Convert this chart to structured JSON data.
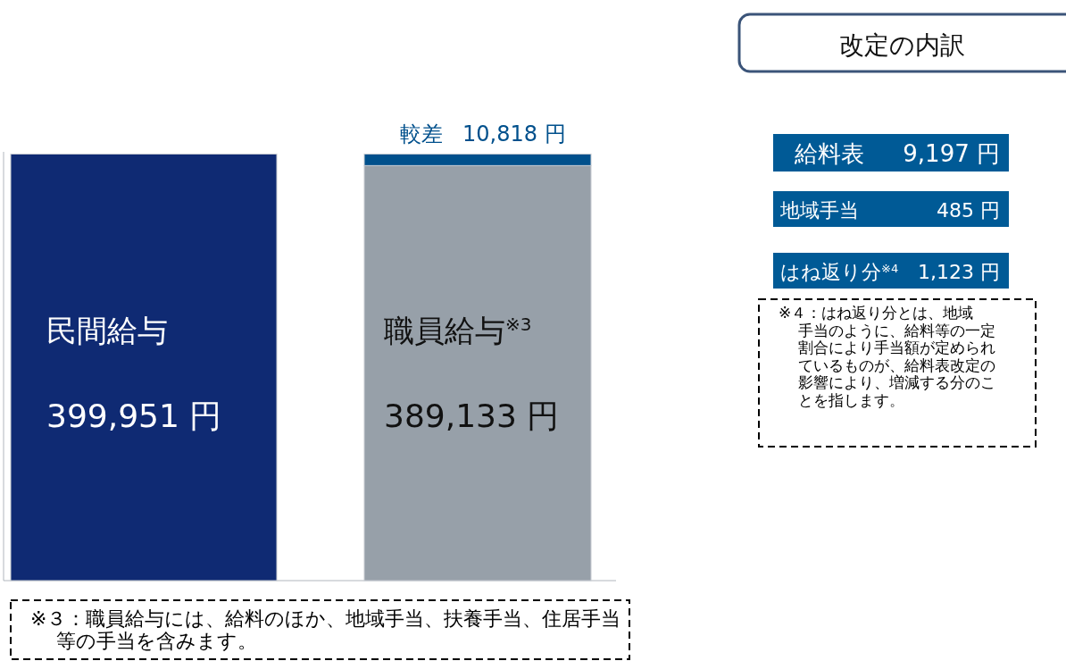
{
  "chart_data": [
    {
      "type": "bar",
      "stacked": true,
      "categories": [
        "民間給与",
        "職員給与$^{※3}$"
      ],
      "ylim": [
        0,
        402000
      ],
      "series": [
        {
          "values": [
            399951,
            389133
          ],
          "colors": [
            "#0f2a73",
            "#97a0a9"
          ],
          "value_labels": [
            "399,951 円",
            "389,133 円"
          ]
        },
        {
          "name": "較差",
          "color": "#00508c",
          "values": [
            null,
            10818
          ],
          "value_labels": [
            null,
            "10,818 円"
          ]
        }
      ],
      "annotations": [
        "※３：職員給与には、給料のほか、地域手当、扶養手当、住居手当等の手当を含みます。"
      ]
    },
    {
      "type": "other",
      "title": "改定の内訳",
      "categories": [
        "給料表",
        "地域手当",
        "はね返り分$^{※4}$"
      ],
      "values": [
        9197,
        485,
        1123
      ],
      "value_labels": [
        "9,197 円",
        "485 円",
        "1,123 円"
      ],
      "color": "#005a96",
      "annotations": [
        "※４：はね返り分とは、地域手当のように、給料等の一定割合により手当額が定められているものが、給料表改定の影響により、増減する分のことを指します。"
      ]
    }
  ]
}
